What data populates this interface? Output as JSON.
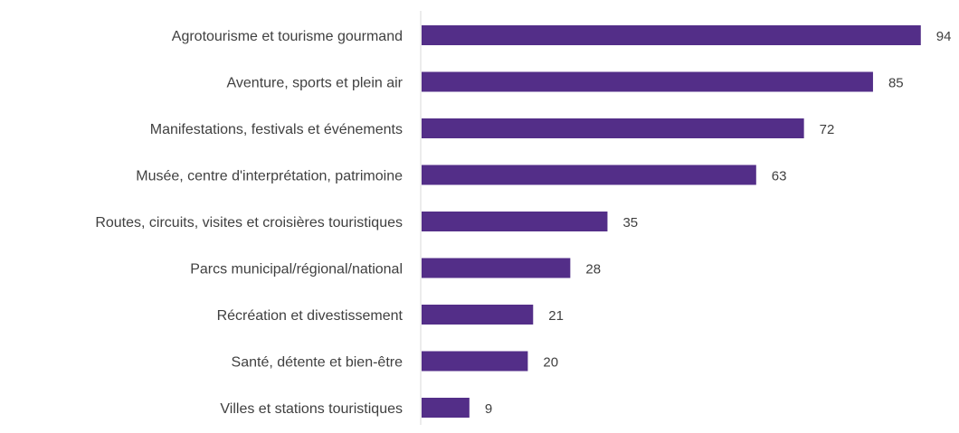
{
  "chart_data": {
    "type": "bar",
    "orientation": "horizontal",
    "categories": [
      "Agrotourisme et tourisme gourmand",
      "Aventure, sports et plein air",
      "Manifestations, festivals et événements",
      "Musée, centre d'interprétation, patrimoine",
      "Routes, circuits, visites et croisières touristiques",
      "Parcs municipal/régional/national",
      "Récréation et divestissement",
      "Santé, détente et bien-être",
      "Villes et stations touristiques"
    ],
    "values": [
      94,
      85,
      72,
      63,
      35,
      28,
      21,
      20,
      9
    ],
    "data_labels": [
      "94",
      "85",
      "72",
      "63",
      "35",
      "28",
      "21",
      "20",
      "9"
    ],
    "title": "",
    "xlabel": "",
    "ylabel": "",
    "xlim": [
      0,
      100
    ],
    "grid": false,
    "legend": "none",
    "colors": {
      "bar": "#532e88",
      "axis": "#d9d9d9",
      "text": "#404040"
    }
  }
}
